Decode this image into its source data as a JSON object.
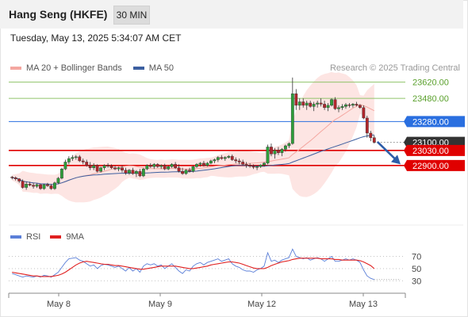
{
  "header": {
    "title": "Hang Seng (HKFE)",
    "timeframe": "30 MIN",
    "timestamp": "Tuesday, May 13, 2025 5:34:07 AM CET"
  },
  "legend": {
    "ma20_label": "MA 20 + Bollinger Bands",
    "ma50_label": "MA 50",
    "credit": "Research © 2025 Trading Central",
    "colors": {
      "ma20": "#f4a7a0",
      "ma50": "#3c5fa0",
      "bands_fill": "#fde0de"
    }
  },
  "rsi_legend": {
    "rsi_label": "RSI",
    "ma_label": "9MA",
    "colors": {
      "rsi": "#5b7fd8",
      "ma": "#e02020"
    }
  },
  "chart_data": [
    {
      "type": "candlestick",
      "ylim": [
        22440,
        23700
      ],
      "x_labels": [
        "May 8",
        "May 9",
        "May 12",
        "May 13"
      ],
      "levels": [
        {
          "value": 23620,
          "label": "23620.00",
          "kind": "resistance",
          "color": "#8fc46a"
        },
        {
          "value": 23480,
          "label": "23480.00",
          "kind": "resistance",
          "color": "#8fc46a"
        },
        {
          "value": 23280,
          "label": "23280.00",
          "kind": "pivot",
          "color": "#2a6fe0"
        },
        {
          "value": 23100,
          "label": "23100.00",
          "kind": "last",
          "color": "#333333"
        },
        {
          "value": 23030,
          "label": "23030.00",
          "kind": "support",
          "color": "#e00000"
        },
        {
          "value": 22900,
          "label": "22900.00",
          "kind": "support",
          "color": "#e00000"
        }
      ],
      "forecast": {
        "from": 23105,
        "to": 22910
      },
      "ohlc": [
        [
          22800,
          22810,
          22780,
          22795
        ],
        [
          22795,
          22805,
          22770,
          22785
        ],
        [
          22785,
          22790,
          22750,
          22765
        ],
        [
          22765,
          22780,
          22700,
          22710
        ],
        [
          22710,
          22760,
          22690,
          22740
        ],
        [
          22740,
          22760,
          22720,
          22730
        ],
        [
          22730,
          22750,
          22700,
          22720
        ],
        [
          22720,
          22745,
          22705,
          22735
        ],
        [
          22735,
          22740,
          22690,
          22700
        ],
        [
          22700,
          22740,
          22690,
          22735
        ],
        [
          22735,
          22750,
          22715,
          22725
        ],
        [
          22725,
          22740,
          22690,
          22700
        ],
        [
          22700,
          22760,
          22690,
          22750
        ],
        [
          22750,
          22800,
          22740,
          22790
        ],
        [
          22790,
          22880,
          22780,
          22870
        ],
        [
          22870,
          22950,
          22860,
          22930
        ],
        [
          22930,
          22980,
          22910,
          22960
        ],
        [
          22960,
          22990,
          22940,
          22970
        ],
        [
          22970,
          22990,
          22950,
          22975
        ],
        [
          22975,
          22990,
          22930,
          22940
        ],
        [
          22940,
          22960,
          22910,
          22930
        ],
        [
          22930,
          22950,
          22890,
          22900
        ],
        [
          22900,
          22930,
          22860,
          22880
        ],
        [
          22880,
          22920,
          22860,
          22900
        ],
        [
          22900,
          22910,
          22840,
          22850
        ],
        [
          22850,
          22890,
          22840,
          22880
        ],
        [
          22880,
          22910,
          22860,
          22900
        ],
        [
          22900,
          22920,
          22880,
          22895
        ],
        [
          22895,
          22910,
          22870,
          22880
        ],
        [
          22880,
          22900,
          22860,
          22870
        ],
        [
          22870,
          22890,
          22850,
          22880
        ],
        [
          22880,
          22900,
          22840,
          22860
        ],
        [
          22860,
          22880,
          22820,
          22835
        ],
        [
          22835,
          22870,
          22820,
          22860
        ],
        [
          22860,
          22880,
          22820,
          22830
        ],
        [
          22830,
          22860,
          22800,
          22850
        ],
        [
          22850,
          22870,
          22800,
          22810
        ],
        [
          22810,
          22880,
          22800,
          22870
        ],
        [
          22870,
          22910,
          22860,
          22900
        ],
        [
          22900,
          22920,
          22880,
          22890
        ],
        [
          22890,
          22920,
          22870,
          22910
        ],
        [
          22910,
          22920,
          22880,
          22890
        ],
        [
          22890,
          22910,
          22870,
          22900
        ],
        [
          22900,
          22915,
          22860,
          22870
        ],
        [
          22870,
          22900,
          22860,
          22890
        ],
        [
          22890,
          22920,
          22880,
          22910
        ],
        [
          22910,
          22930,
          22870,
          22880
        ],
        [
          22880,
          22910,
          22840,
          22850
        ],
        [
          22850,
          22880,
          22820,
          22830
        ],
        [
          22830,
          22870,
          22820,
          22860
        ],
        [
          22860,
          22880,
          22840,
          22850
        ],
        [
          22850,
          22900,
          22840,
          22890
        ],
        [
          22890,
          22920,
          22880,
          22910
        ],
        [
          22910,
          22930,
          22890,
          22920
        ],
        [
          22920,
          22940,
          22890,
          22900
        ],
        [
          22900,
          22930,
          22890,
          22920
        ],
        [
          22920,
          22950,
          22910,
          22940
        ],
        [
          22940,
          22960,
          22920,
          22950
        ],
        [
          22950,
          22980,
          22930,
          22970
        ],
        [
          22970,
          22990,
          22950,
          22960
        ],
        [
          22960,
          22980,
          22940,
          22970
        ],
        [
          22970,
          22990,
          22960,
          22980
        ],
        [
          22980,
          22995,
          22940,
          22950
        ],
        [
          22950,
          22970,
          22920,
          22940
        ],
        [
          22940,
          22960,
          22910,
          22930
        ],
        [
          22930,
          22950,
          22900,
          22910
        ],
        [
          22910,
          22930,
          22880,
          22900
        ],
        [
          22900,
          22920,
          22880,
          22895
        ],
        [
          22895,
          22910,
          22870,
          22885
        ],
        [
          22885,
          22900,
          22860,
          22890
        ],
        [
          22890,
          22910,
          22880,
          22905
        ],
        [
          22905,
          22930,
          22890,
          22920
        ],
        [
          22920,
          23080,
          22910,
          23060
        ],
        [
          23060,
          23090,
          22980,
          23000
        ],
        [
          23000,
          23050,
          22960,
          23030
        ],
        [
          23030,
          23060,
          22990,
          23010
        ],
        [
          23010,
          23050,
          22980,
          23040
        ],
        [
          23040,
          23080,
          23020,
          23070
        ],
        [
          23070,
          23100,
          23050,
          23090
        ],
        [
          23090,
          23660,
          23080,
          23520
        ],
        [
          23520,
          23560,
          23380,
          23420
        ],
        [
          23420,
          23480,
          23380,
          23450
        ],
        [
          23450,
          23480,
          23400,
          23420
        ],
        [
          23420,
          23460,
          23380,
          23440
        ],
        [
          23440,
          23460,
          23400,
          23410
        ],
        [
          23410,
          23450,
          23370,
          23430
        ],
        [
          23430,
          23460,
          23400,
          23440
        ],
        [
          23440,
          23480,
          23410,
          23430
        ],
        [
          23430,
          23460,
          23380,
          23400
        ],
        [
          23400,
          23440,
          23370,
          23420
        ],
        [
          23420,
          23480,
          23410,
          23470
        ],
        [
          23470,
          23490,
          23380,
          23390
        ],
        [
          23390,
          23420,
          23360,
          23400
        ],
        [
          23400,
          23430,
          23380,
          23410
        ],
        [
          23410,
          23440,
          23390,
          23425
        ],
        [
          23425,
          23440,
          23400,
          23420
        ],
        [
          23420,
          23440,
          23400,
          23430
        ],
        [
          23430,
          23450,
          23410,
          23420
        ],
        [
          23420,
          23430,
          23390,
          23400
        ],
        [
          23400,
          23420,
          23300,
          23310
        ],
        [
          23310,
          23330,
          23140,
          23180
        ],
        [
          23180,
          23200,
          23110,
          23140
        ],
        [
          23140,
          23160,
          23090,
          23100
        ]
      ]
    },
    {
      "type": "line",
      "title": "RSI",
      "ylim": [
        20,
        85
      ],
      "ticks": [
        {
          "value": 70,
          "label": "70"
        },
        {
          "value": 50,
          "label": "50"
        },
        {
          "value": 30,
          "label": "30"
        }
      ],
      "series": [
        {
          "name": "RSI",
          "color": "#5b7fd8",
          "values": [
            42,
            40,
            38,
            36,
            38,
            37,
            36,
            38,
            36,
            39,
            38,
            36,
            40,
            44,
            52,
            60,
            66,
            67,
            68,
            64,
            62,
            58,
            54,
            56,
            50,
            55,
            57,
            56,
            54,
            52,
            54,
            50,
            46,
            52,
            46,
            50,
            44,
            54,
            58,
            56,
            58,
            54,
            56,
            50,
            54,
            58,
            52,
            46,
            42,
            48,
            46,
            54,
            58,
            60,
            56,
            60,
            62,
            64,
            66,
            62,
            64,
            66,
            58,
            54,
            52,
            48,
            46,
            46,
            44,
            48,
            50,
            54,
            76,
            62,
            64,
            60,
            64,
            66,
            68,
            82,
            70,
            68,
            66,
            68,
            64,
            66,
            68,
            66,
            62,
            66,
            70,
            62,
            62,
            64,
            66,
            64,
            66,
            64,
            60,
            48,
            38,
            34,
            32
          ]
        },
        {
          "name": "9MA",
          "color": "#e02020",
          "values": [
            44,
            43,
            42,
            41,
            40,
            39,
            38,
            38,
            37,
            37,
            37,
            37,
            38,
            39,
            41,
            44,
            48,
            52,
            56,
            59,
            61,
            62,
            61,
            60,
            59,
            58,
            57,
            57,
            56,
            55,
            55,
            54,
            53,
            52,
            51,
            50,
            49,
            49,
            50,
            51,
            52,
            53,
            54,
            54,
            54,
            54,
            54,
            53,
            52,
            51,
            50,
            50,
            51,
            52,
            53,
            54,
            56,
            57,
            58,
            59,
            60,
            61,
            61,
            60,
            59,
            57,
            55,
            53,
            51,
            50,
            50,
            50,
            52,
            55,
            57,
            59,
            61,
            62,
            63,
            65,
            66,
            67,
            67,
            67,
            67,
            67,
            67,
            66,
            66,
            66,
            66,
            65,
            65,
            64,
            64,
            64,
            64,
            64,
            63,
            61,
            58,
            55,
            50
          ]
        }
      ]
    }
  ]
}
